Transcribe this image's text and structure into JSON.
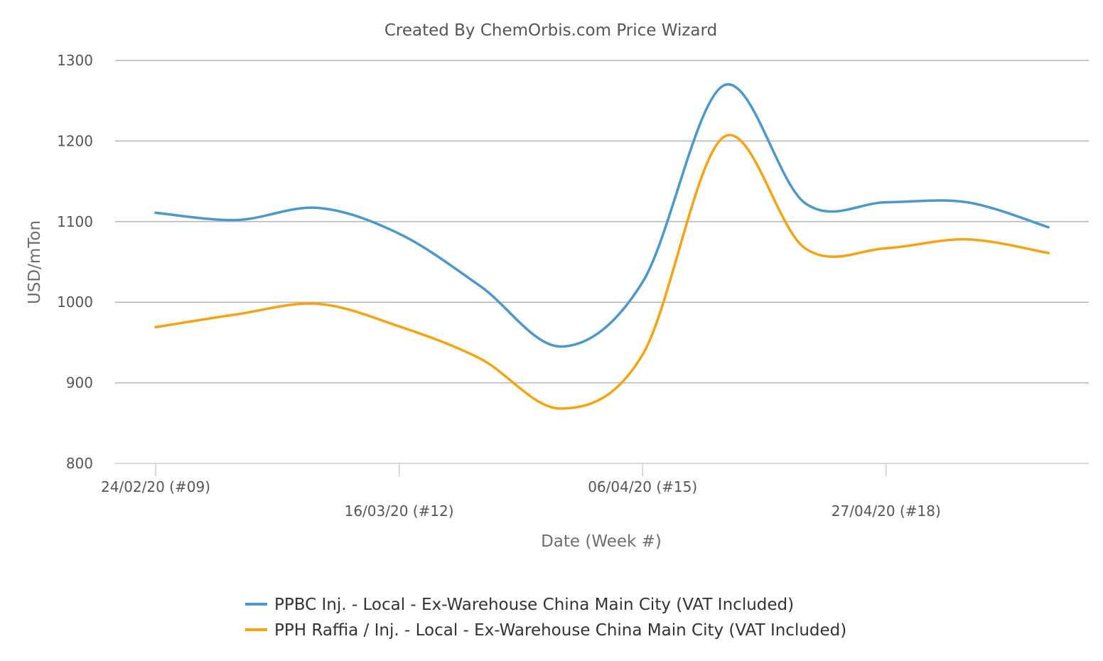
{
  "chart_data": {
    "type": "line",
    "title": "Created By ChemOrbis.com Price Wizard",
    "xlabel": "Date (Week #)",
    "ylabel": "USD/mTon",
    "ylim": [
      800,
      1300
    ],
    "yticks": [
      800,
      900,
      1000,
      1100,
      1200,
      1300
    ],
    "x": [
      "24/02/20 (#09)",
      "",
      "",
      "16/03/20 (#12)",
      "",
      "",
      "06/04/20 (#15)",
      "",
      "",
      "27/04/20 (#18)",
      "",
      ""
    ],
    "xtick_labels": [
      "24/02/20 (#09)",
      "16/03/20 (#12)",
      "06/04/20 (#15)",
      "27/04/20 (#18)"
    ],
    "xtick_indices": [
      0,
      3,
      6,
      9
    ],
    "grid": true,
    "legend_position": "bottom",
    "series": [
      {
        "name": "PPBC Inj. - Local - Ex-Warehouse China Main City (VAT Included)",
        "color": "#4a98cc",
        "values": [
          1111,
          1102,
          1117,
          1085,
          1020,
          945,
          1025,
          1269,
          1123,
          1124,
          1124,
          1093
        ]
      },
      {
        "name": "PPH Raffia / Inj. - Local - Ex-Warehouse China Main City (VAT Included)",
        "color": "#f5a40f",
        "values": [
          969,
          985,
          998,
          970,
          930,
          868,
          935,
          1205,
          1067,
          1067,
          1078,
          1061
        ]
      }
    ]
  }
}
